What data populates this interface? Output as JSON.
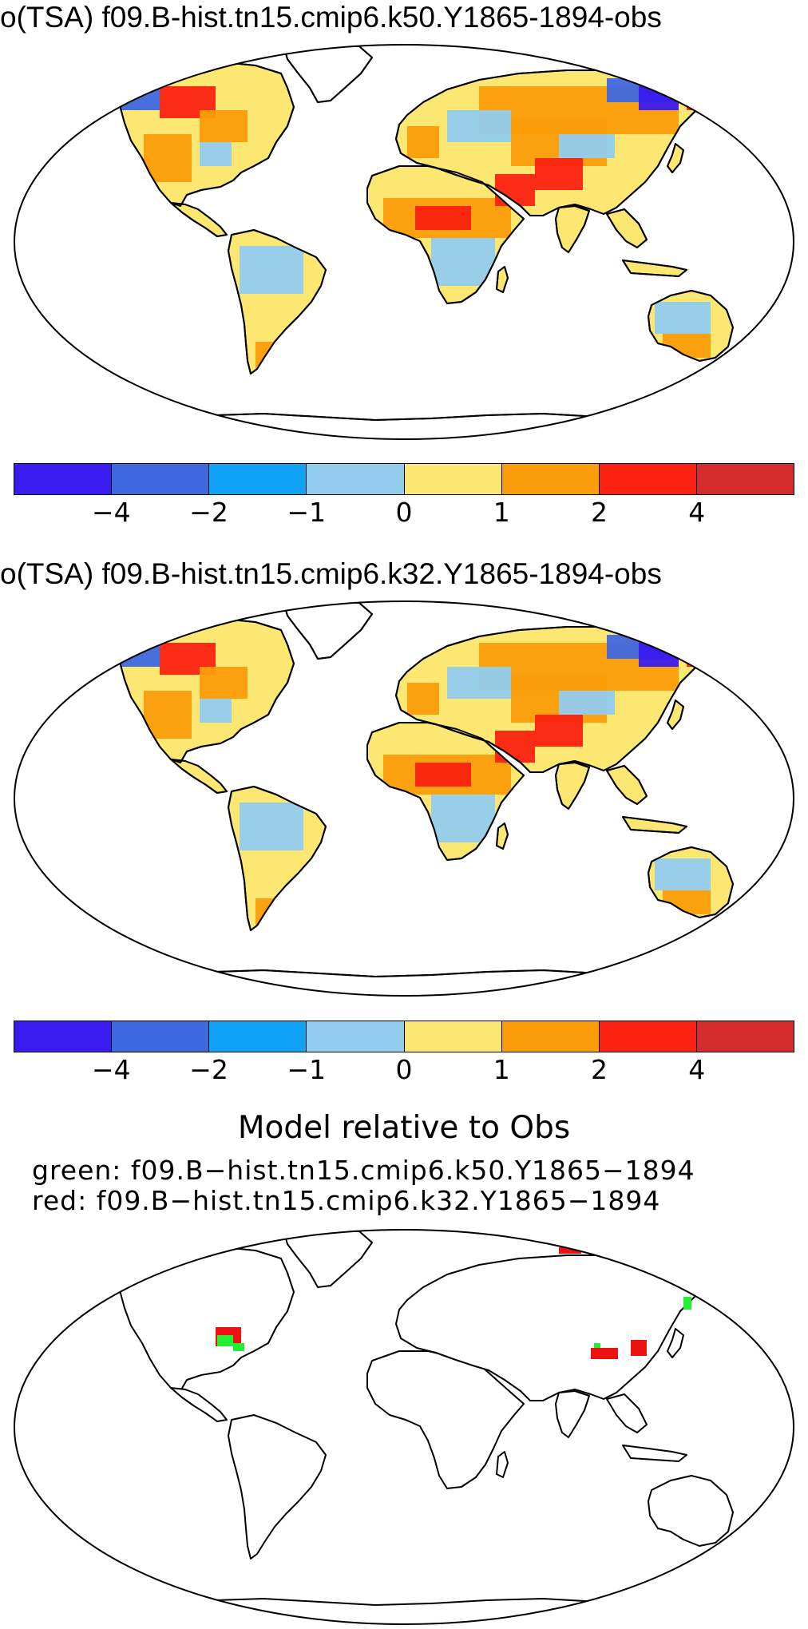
{
  "panels": [
    {
      "title": "o(TSA) f09.B-hist.tn15.cmip6.k50.Y1865-1894-obs"
    },
    {
      "title": "o(TSA) f09.B-hist.tn15.cmip6.k32.Y1865-1894-obs"
    }
  ],
  "colorbar": {
    "colors": [
      "#3a1cf0",
      "#3e68e0",
      "#12a2f5",
      "#93ccef",
      "#fbe772",
      "#fb9d0a",
      "#fb2211",
      "#d42c2c"
    ],
    "labels": [
      "−4",
      "−2",
      "−1",
      "0",
      "1",
      "2",
      "4"
    ]
  },
  "comparison": {
    "heading": "Model relative to Obs",
    "green_label": "green: f09.B−hist.tn15.cmip6.k50.Y1865−1894",
    "red_label": "red: f09.B−hist.tn15.cmip6.k32.Y1865−1894",
    "green_color": "#22ee33",
    "red_color": "#ee1111"
  },
  "map_palette": {
    "warm1": "#fbe772",
    "warm2": "#fb9d0a",
    "warm3": "#fb2211",
    "cool1": "#93ccef",
    "cool2": "#3e68e0",
    "cool3": "#3a1cf0"
  }
}
